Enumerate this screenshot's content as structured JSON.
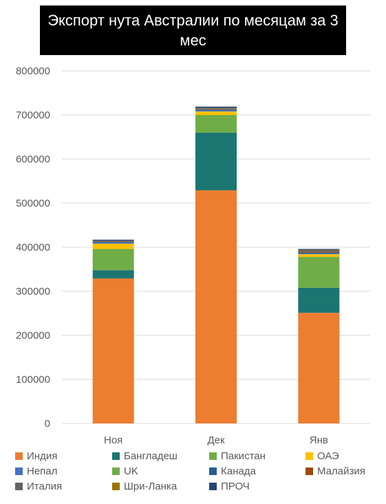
{
  "chart_data": {
    "type": "bar",
    "stacked": true,
    "title": "Экспорт нута Австралии по месяцам за 3 мес",
    "categories": [
      "Ноя",
      "Дек",
      "Янв"
    ],
    "ylim": [
      0,
      800000
    ],
    "yticks": [
      0,
      100000,
      200000,
      300000,
      400000,
      500000,
      600000,
      700000,
      800000
    ],
    "grid": true,
    "legend_position": "bottom",
    "series": [
      {
        "name": "Индия",
        "color": "#ED7D31",
        "values": [
          329000,
          529000,
          251000
        ]
      },
      {
        "name": "Бангладеш",
        "color": "#1B7672",
        "values": [
          19000,
          131000,
          57000
        ]
      },
      {
        "name": "Пакистан",
        "color": "#70AD47",
        "values": [
          48000,
          40000,
          70000
        ]
      },
      {
        "name": "ОАЭ",
        "color": "#FFC000",
        "values": [
          12000,
          8000,
          6000
        ]
      },
      {
        "name": "Непал",
        "color": "#4472C4",
        "values": [
          2000,
          2000,
          2000
        ]
      },
      {
        "name": "UK",
        "color": "#70AD47",
        "values": [
          0,
          0,
          0
        ]
      },
      {
        "name": "Канада",
        "color": "#255E91",
        "values": [
          2000,
          2000,
          2000
        ]
      },
      {
        "name": "Малайзия",
        "color": "#9E480E",
        "values": [
          1000,
          1000,
          2000
        ]
      },
      {
        "name": "Италия",
        "color": "#636363",
        "values": [
          2000,
          2000,
          3000
        ]
      },
      {
        "name": "Шри-Ланка",
        "color": "#997300",
        "values": [
          0,
          1000,
          1000
        ]
      },
      {
        "name": "ПРОЧ",
        "color": "#264478",
        "values": [
          2000,
          3000,
          2000
        ]
      }
    ]
  }
}
